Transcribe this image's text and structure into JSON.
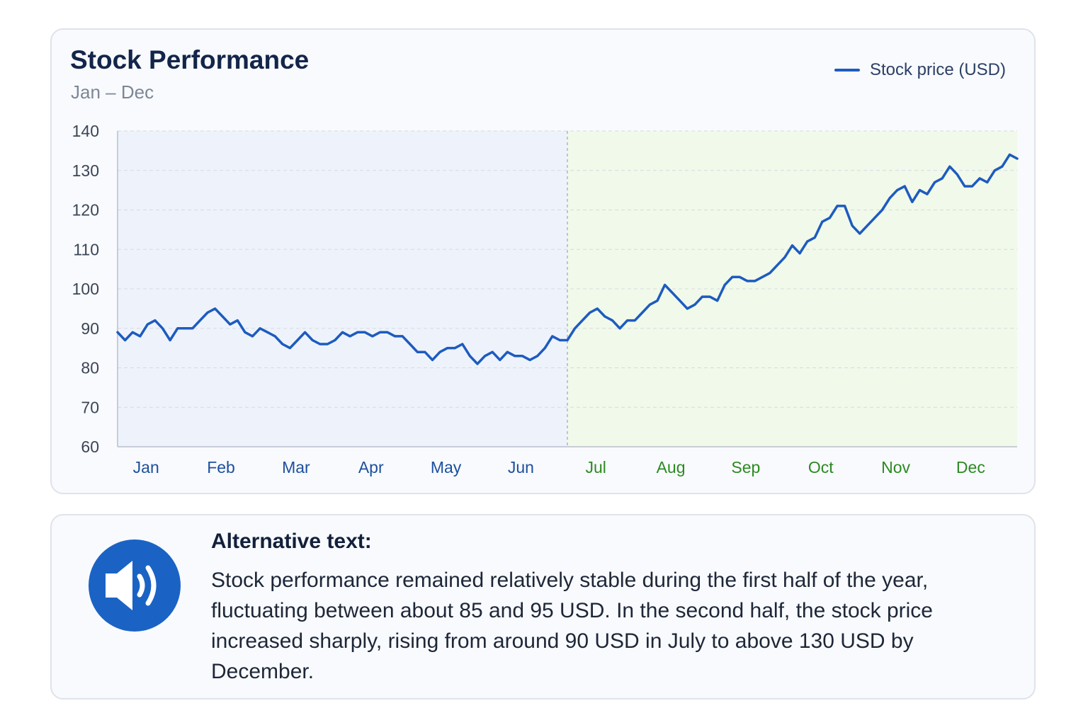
{
  "colors": {
    "line": "#1d5bbf",
    "first_half_bg": "#eef3fb",
    "second_half_bg": "#f1f9ea",
    "first_half_label": "#1d4f9e",
    "second_half_label": "#2c8a22",
    "icon_bg": "#1a63c5"
  },
  "chart_card": {
    "title": "Stock Performance",
    "subtitle": "Jan – Dec",
    "legend_label": "Stock price (USD)"
  },
  "chart_data": {
    "type": "line",
    "title": "Stock Performance",
    "subtitle": "Jan – Dec",
    "xlabel": "",
    "ylabel": "",
    "ylim": [
      60,
      140
    ],
    "yticks": [
      60,
      70,
      80,
      90,
      100,
      110,
      120,
      130,
      140
    ],
    "months": [
      "Jan",
      "Feb",
      "Mar",
      "Apr",
      "May",
      "Jun",
      "Jul",
      "Aug",
      "Sep",
      "Oct",
      "Nov",
      "Dec"
    ],
    "grid": true,
    "legend": "top-right",
    "highlight_split_after": "Jun",
    "series": [
      {
        "name": "Stock price (USD)",
        "x": [
          0.0,
          0.1,
          0.2,
          0.3,
          0.4,
          0.5,
          0.6,
          0.7,
          0.8,
          0.9,
          1.0,
          1.1,
          1.2,
          1.3,
          1.4,
          1.5,
          1.6,
          1.7,
          1.8,
          1.9,
          2.0,
          2.1,
          2.2,
          2.3,
          2.4,
          2.5,
          2.6,
          2.7,
          2.8,
          2.9,
          3.0,
          3.1,
          3.2,
          3.3,
          3.4,
          3.5,
          3.6,
          3.7,
          3.8,
          3.9,
          4.0,
          4.1,
          4.2,
          4.3,
          4.4,
          4.5,
          4.6,
          4.7,
          4.8,
          4.9,
          5.0,
          5.1,
          5.2,
          5.3,
          5.4,
          5.5,
          5.6,
          5.7,
          5.8,
          5.9,
          6.0,
          6.1,
          6.2,
          6.3,
          6.4,
          6.5,
          6.6,
          6.7,
          6.8,
          6.9,
          7.0,
          7.1,
          7.2,
          7.3,
          7.4,
          7.5,
          7.6,
          7.7,
          7.8,
          7.9,
          8.0,
          8.1,
          8.2,
          8.3,
          8.4,
          8.5,
          8.6,
          8.7,
          8.8,
          8.9,
          9.0,
          9.1,
          9.2,
          9.3,
          9.4,
          9.5,
          9.6,
          9.7,
          9.8,
          9.9,
          10.0,
          10.1,
          10.2,
          10.3,
          10.4,
          10.5,
          10.6,
          10.7,
          10.8,
          10.9,
          11.0,
          11.1,
          11.2,
          11.3,
          11.4,
          11.5,
          11.6,
          11.7,
          11.8,
          11.9,
          12.0
        ],
        "values": [
          89,
          87,
          89,
          88,
          91,
          92,
          90,
          87,
          90,
          90,
          90,
          92,
          94,
          95,
          93,
          91,
          92,
          89,
          88,
          90,
          89,
          88,
          86,
          85,
          87,
          89,
          87,
          86,
          86,
          87,
          89,
          88,
          89,
          89,
          88,
          89,
          89,
          88,
          88,
          86,
          84,
          84,
          82,
          84,
          85,
          85,
          86,
          83,
          81,
          83,
          84,
          82,
          84,
          83,
          83,
          82,
          83,
          85,
          88,
          87,
          87,
          90,
          92,
          94,
          95,
          93,
          92,
          90,
          92,
          92,
          94,
          96,
          97,
          101,
          99,
          97,
          95,
          96,
          98,
          98,
          97,
          101,
          103,
          103,
          102,
          102,
          103,
          104,
          106,
          108,
          111,
          109,
          112,
          113,
          117,
          118,
          121,
          121,
          116,
          114,
          116,
          118,
          120,
          123,
          125,
          126,
          122,
          125,
          124,
          127,
          128,
          131,
          129,
          126,
          126,
          128,
          127,
          130,
          131,
          134,
          133
        ]
      }
    ]
  },
  "alt_card": {
    "icon": "speaker-icon",
    "heading": "Alternative text:",
    "body": "Stock performance remained relatively stable during the first half of the year, fluctuating between about 85 and 95 USD. In the second half, the stock price increased sharply, rising from around 90 USD in July to above 130 USD by December."
  }
}
